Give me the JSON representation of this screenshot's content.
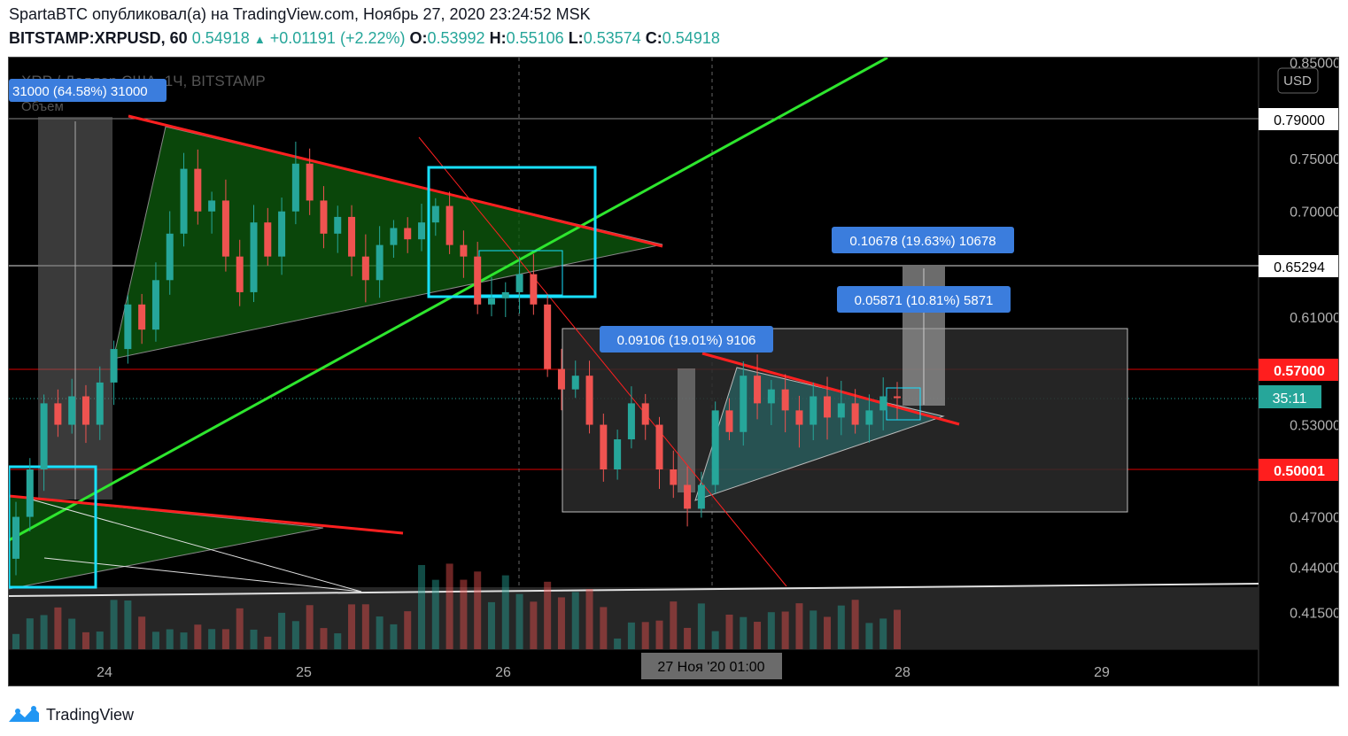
{
  "header": {
    "line1": "SpartaBTC опубликовал(а) на TradingView.com, Ноябрь 27, 2020 23:24:52 MSK",
    "symbol": "BITSTAMP:XRPUSD, 60",
    "last": "0.54918",
    "change_up_icon": "triangle-up-icon",
    "change": "+0.01191 (+2.22%)",
    "o_label": "O:",
    "o": "0.53992",
    "h_label": "H:",
    "h": "0.55106",
    "l_label": "L:",
    "l": "0.53574",
    "c_label": "C:",
    "c": "0.54918"
  },
  "chart_overlay": {
    "pair_title": "XRP / Доллар США, 1Ч, BITSTAMP",
    "volume_label": "Объем",
    "volume_badge": "31000 (64.58%) 31000",
    "currency": "USD",
    "countdown": "35:11",
    "crosshair_time": "27 Ноя '20   01:00"
  },
  "measure_labels": [
    "0.10678 (19.63%) 10678",
    "0.05871 (10.81%) 5871",
    "0.09106 (19.01%) 9106"
  ],
  "price_badges": [
    "0.79000",
    "0.65294",
    "0.57000",
    "0.50001"
  ],
  "footer": {
    "brand": "TradingView",
    "logo_icon": "tradingview-logo-icon"
  },
  "colors": {
    "up": "#26a69a",
    "down": "#ef5350",
    "red_line": "#ff1e1e",
    "green_line": "#22dd22",
    "cyan": "#00e5ff",
    "label_blue": "#3b7ddd"
  },
  "chart_data": {
    "type": "candlestick",
    "title": "XRP / Доллар США, 1Ч, BITSTAMP",
    "x_ticks": [
      "24",
      "25",
      "26",
      "27",
      "28",
      "29"
    ],
    "y_ticks": [
      "0.85000",
      "0.75000",
      "0.70000",
      "0.61000",
      "0.53000",
      "0.47000",
      "0.44000",
      "0.41500"
    ],
    "scale": "log",
    "horizontal_levels": [
      0.79,
      0.65294,
      0.57,
      0.50001
    ],
    "grid": false,
    "candles_approx": [
      {
        "o": 0.445,
        "c": 0.47
      },
      {
        "o": 0.47,
        "c": 0.5
      },
      {
        "o": 0.5,
        "c": 0.545
      },
      {
        "o": 0.545,
        "c": 0.53
      },
      {
        "o": 0.53,
        "c": 0.55
      },
      {
        "o": 0.55,
        "c": 0.53
      },
      {
        "o": 0.53,
        "c": 0.56
      },
      {
        "o": 0.56,
        "c": 0.585
      },
      {
        "o": 0.585,
        "c": 0.62
      },
      {
        "o": 0.62,
        "c": 0.6
      },
      {
        "o": 0.6,
        "c": 0.64
      },
      {
        "o": 0.64,
        "c": 0.68
      },
      {
        "o": 0.68,
        "c": 0.74
      },
      {
        "o": 0.74,
        "c": 0.7
      },
      {
        "o": 0.7,
        "c": 0.71
      },
      {
        "o": 0.71,
        "c": 0.66
      },
      {
        "o": 0.66,
        "c": 0.63
      },
      {
        "o": 0.63,
        "c": 0.69
      },
      {
        "o": 0.69,
        "c": 0.66
      },
      {
        "o": 0.66,
        "c": 0.7
      },
      {
        "o": 0.7,
        "c": 0.745
      },
      {
        "o": 0.745,
        "c": 0.71
      },
      {
        "o": 0.71,
        "c": 0.68
      },
      {
        "o": 0.68,
        "c": 0.695
      },
      {
        "o": 0.695,
        "c": 0.66
      },
      {
        "o": 0.66,
        "c": 0.64
      },
      {
        "o": 0.64,
        "c": 0.67
      },
      {
        "o": 0.67,
        "c": 0.685
      },
      {
        "o": 0.685,
        "c": 0.675
      },
      {
        "o": 0.675,
        "c": 0.69
      },
      {
        "o": 0.69,
        "c": 0.705
      },
      {
        "o": 0.705,
        "c": 0.67
      },
      {
        "o": 0.67,
        "c": 0.66
      },
      {
        "o": 0.66,
        "c": 0.62
      },
      {
        "o": 0.62,
        "c": 0.625
      },
      {
        "o": 0.625,
        "c": 0.63
      },
      {
        "o": 0.63,
        "c": 0.645
      },
      {
        "o": 0.645,
        "c": 0.62
      },
      {
        "o": 0.62,
        "c": 0.57
      },
      {
        "o": 0.57,
        "c": 0.555
      },
      {
        "o": 0.555,
        "c": 0.565
      },
      {
        "o": 0.565,
        "c": 0.53
      },
      {
        "o": 0.53,
        "c": 0.5
      },
      {
        "o": 0.5,
        "c": 0.52
      },
      {
        "o": 0.52,
        "c": 0.545
      },
      {
        "o": 0.545,
        "c": 0.53
      },
      {
        "o": 0.53,
        "c": 0.5
      },
      {
        "o": 0.5,
        "c": 0.49
      },
      {
        "o": 0.49,
        "c": 0.475
      },
      {
        "o": 0.475,
        "c": 0.49
      },
      {
        "o": 0.49,
        "c": 0.54
      },
      {
        "o": 0.54,
        "c": 0.525
      },
      {
        "o": 0.525,
        "c": 0.565
      },
      {
        "o": 0.565,
        "c": 0.545
      },
      {
        "o": 0.545,
        "c": 0.555
      },
      {
        "o": 0.555,
        "c": 0.54
      },
      {
        "o": 0.54,
        "c": 0.53
      },
      {
        "o": 0.53,
        "c": 0.55
      },
      {
        "o": 0.55,
        "c": 0.535
      },
      {
        "o": 0.535,
        "c": 0.545
      },
      {
        "o": 0.545,
        "c": 0.53
      },
      {
        "o": 0.53,
        "c": 0.54
      },
      {
        "o": 0.54,
        "c": 0.55
      },
      {
        "o": 0.55,
        "c": 0.549
      }
    ]
  }
}
